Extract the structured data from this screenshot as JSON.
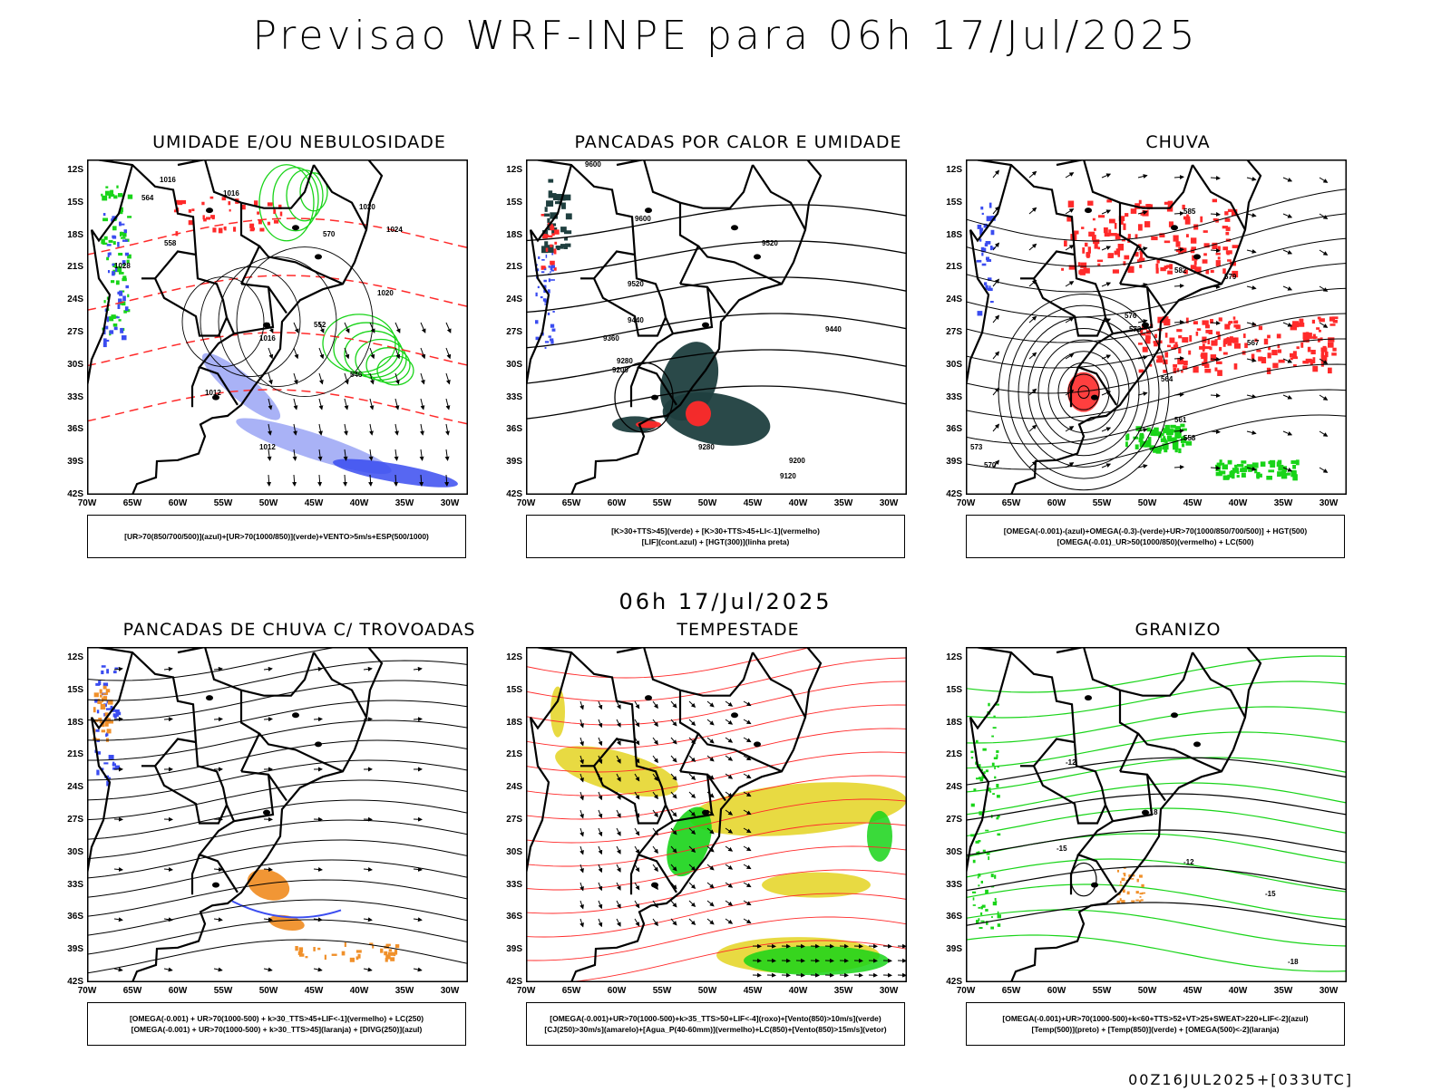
{
  "header": {
    "title": "Previsao WRF-INPE  para 06h 17/Jul/2025",
    "subtitle": "06h 17/Jul/2025",
    "footer": "00Z16JUL2025+[033UTC]"
  },
  "axes": {
    "lat_labels": [
      "12S",
      "15S",
      "18S",
      "21S",
      "24S",
      "27S",
      "30S",
      "33S",
      "36S",
      "39S",
      "42S"
    ],
    "lon_labels": [
      "70W",
      "65W",
      "60W",
      "55W",
      "50W",
      "45W",
      "40W",
      "35W",
      "30W"
    ]
  },
  "colors": {
    "red": "#ff2a2a",
    "green": "#18d418",
    "blue": "#3a4cf0",
    "lightblue": "#9aa4f4",
    "darkteal": "#1f3f3f",
    "yellow": "#e6d62e",
    "orange": "#f0902a",
    "black": "#000000"
  },
  "panels": [
    {
      "id": "umidade",
      "title": "UMIDADE E/OU NEBULOSIDADE",
      "legend": [
        "[UR>70(850/700/500)](azul)+[UR>70(1000/850)](verde)+VENTO>5m/s+ESP(500/1000)"
      ],
      "contour_labels": [
        "1016",
        "1016",
        "1020",
        "1024",
        "1028",
        "1012",
        "1020",
        "1016",
        "1012",
        "570",
        "564",
        "558",
        "552",
        "546"
      ]
    },
    {
      "id": "pancadas-calor",
      "title": "PANCADAS POR CALOR E UMIDADE",
      "legend": [
        "[K>30+TTS>45](verde) + [K>30+TTS>45+LI<-1](vermelho)",
        "[LIF](cont.azul) + [HGT(300)](linha preta)"
      ],
      "contour_labels": [
        "9600",
        "9520",
        "9440",
        "9360",
        "9280",
        "9200",
        "9120",
        "9600",
        "9520",
        "9440",
        "9280",
        "9200"
      ]
    },
    {
      "id": "chuva",
      "title": "CHUVA",
      "legend": [
        "[OMEGA(-0.001)-(azul)+OMEGA(-0.3)-(verde)+UR>70(1000/850/700/500)] + HGT(500)",
        "[OMEGA(-0.01)_UR>50(1000/850)(vermelho) + LC(500)"
      ],
      "contour_labels": [
        "585",
        "582",
        "579",
        "576",
        "573",
        "570",
        "567",
        "564",
        "561",
        "558",
        "573",
        "570"
      ]
    },
    {
      "id": "trovoadas",
      "title": "PANCADAS DE CHUVA C/ TROVOADAS",
      "legend": [
        "[OMEGA(-0.001) + UR>70(1000-500) + k>30_TTS>45+LIF<-1](vermelho) + LC(250)",
        "[OMEGA(-0.001) + UR>70(1000-500) + k>30_TTS>45](laranja) + [DIVG(250)](azul)"
      ],
      "contour_labels": []
    },
    {
      "id": "tempestade",
      "title": "TEMPESTADE",
      "legend": [
        "[OMEGA(-0.001)+UR>70(1000-500)+k>35_TTS>50+LIF<-4](roxo)+[Vento(850)>10m/s](verde)",
        "[CJ(250)>30m/s](amarelo)+[Agua_P(40-60mm)](vermelho)+LC(850)+[Vento(850)>15m/s](vetor)"
      ],
      "contour_labels": []
    },
    {
      "id": "granizo",
      "title": "GRANIZO",
      "legend": [
        "[OMEGA(-0.001)+UR>70(1000-500)+k<60+TTS>52+VT>25+SWEAT>220+LIF<-2](azul)",
        "[Temp(500)](preto) + [Temp(850)](verde) + [OMEGA(500)<-2](laranja)"
      ],
      "contour_labels": [
        "-12",
        "-15",
        "-18",
        "-12",
        "-15",
        "-18"
      ]
    }
  ]
}
